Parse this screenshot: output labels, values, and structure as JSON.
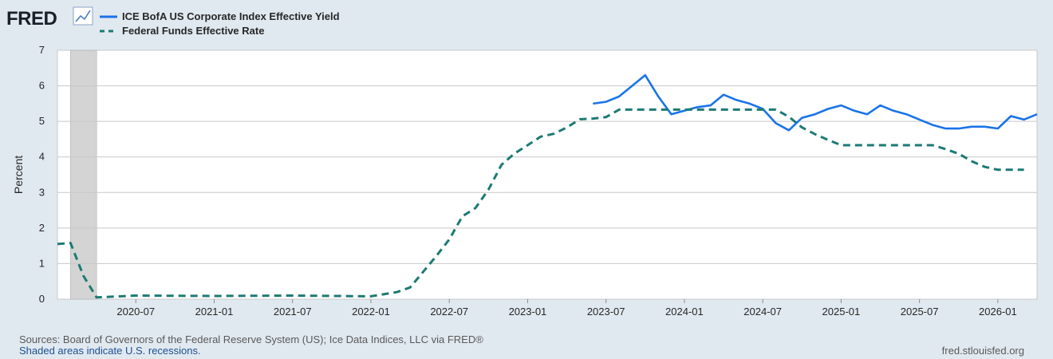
{
  "header": {
    "brand": "FRED",
    "brand_icon": "line-chart-icon"
  },
  "chart_data": {
    "type": "line",
    "title": "",
    "xlabel": "",
    "ylabel": "Percent",
    "ylim": [
      0,
      7
    ],
    "xlim": [
      "2020-01",
      "2026-04"
    ],
    "y_ticks": [
      "0",
      "1",
      "2",
      "3",
      "4",
      "5",
      "6",
      "7"
    ],
    "x_ticks": [
      "2020-07",
      "2021-01",
      "2021-07",
      "2022-01",
      "2022-07",
      "2023-01",
      "2023-07",
      "2024-01",
      "2024-07",
      "2025-01",
      "2025-07",
      "2026-01"
    ],
    "grid": true,
    "legend_placement": "top-left",
    "recessions": [
      {
        "start": "2020-02",
        "end": "2020-04"
      }
    ],
    "series": [
      {
        "name": "ICE BofA US Corporate Index Effective Yield",
        "color": "#1a73e8",
        "style": "solid",
        "x": [
          "2023-06",
          "2023-07",
          "2023-08",
          "2023-09",
          "2023-10",
          "2023-11",
          "2023-12",
          "2024-01",
          "2024-02",
          "2024-03",
          "2024-04",
          "2024-05",
          "2024-06",
          "2024-07",
          "2024-08",
          "2024-09",
          "2024-10",
          "2024-11",
          "2024-12",
          "2025-01",
          "2025-02",
          "2025-03",
          "2025-04",
          "2025-05",
          "2025-06",
          "2025-07",
          "2025-08",
          "2025-09",
          "2025-10",
          "2025-11",
          "2025-12",
          "2026-01",
          "2026-02",
          "2026-03",
          "2026-04"
        ],
        "y": [
          5.5,
          5.55,
          5.7,
          6.0,
          6.3,
          5.7,
          5.2,
          5.3,
          5.4,
          5.45,
          5.75,
          5.6,
          5.5,
          5.35,
          4.95,
          4.75,
          5.1,
          5.2,
          5.35,
          5.45,
          5.3,
          5.2,
          5.45,
          5.3,
          5.2,
          5.05,
          4.9,
          4.8,
          4.8,
          4.85,
          4.85,
          4.8,
          5.15,
          5.05,
          5.2
        ]
      },
      {
        "name": "Federal Funds Effective Rate",
        "color": "#1c7a74",
        "style": "dashed",
        "x": [
          "2020-01",
          "2020-02",
          "2020-03",
          "2020-04",
          "2020-07",
          "2021-01",
          "2021-07",
          "2022-01",
          "2022-03",
          "2022-04",
          "2022-05",
          "2022-06",
          "2022-07",
          "2022-08",
          "2022-09",
          "2022-10",
          "2022-11",
          "2022-12",
          "2023-01",
          "2023-02",
          "2023-03",
          "2023-04",
          "2023-05",
          "2023-06",
          "2023-07",
          "2023-08",
          "2024-01",
          "2024-07",
          "2024-08",
          "2024-09",
          "2024-10",
          "2024-11",
          "2024-12",
          "2025-01",
          "2025-07",
          "2025-08",
          "2025-09",
          "2025-10",
          "2025-11",
          "2025-12",
          "2026-01",
          "2026-02",
          "2026-03"
        ],
        "y": [
          1.55,
          1.58,
          0.65,
          0.05,
          0.1,
          0.09,
          0.1,
          0.08,
          0.2,
          0.33,
          0.77,
          1.21,
          1.68,
          2.33,
          2.56,
          3.08,
          3.78,
          4.1,
          4.33,
          4.57,
          4.65,
          4.83,
          5.06,
          5.08,
          5.12,
          5.33,
          5.33,
          5.33,
          5.33,
          5.13,
          4.83,
          4.64,
          4.48,
          4.33,
          4.33,
          4.33,
          4.22,
          4.09,
          3.88,
          3.72,
          3.64,
          3.64,
          3.64
        ]
      }
    ]
  },
  "footer": {
    "sources": "Sources: Board of Governors of the Federal Reserve System (US); Ice Data Indices, LLC via FRED®",
    "recession_note": "Shaded areas indicate U.S. recessions.",
    "site": "fred.stlouisfed.org"
  }
}
